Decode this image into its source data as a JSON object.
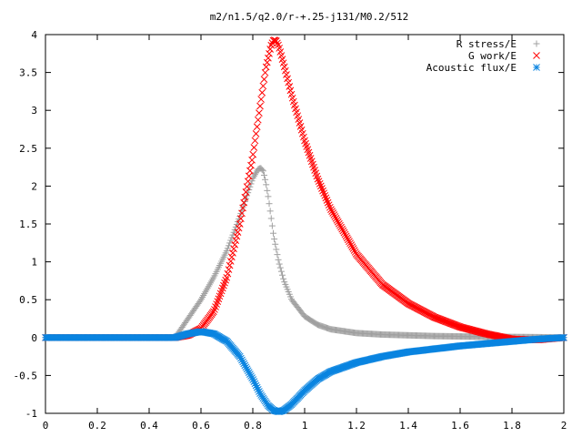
{
  "chart_data": {
    "type": "scatter",
    "title": "m2/n1.5/q2.0/r-+.25-j131/M0.2/512",
    "xlabel": "",
    "ylabel": "",
    "xlim": [
      0,
      2
    ],
    "ylim": [
      -1,
      4
    ],
    "xticks": [
      "0",
      "0.2",
      "0.4",
      "0.6",
      "0.8",
      "1",
      "1.2",
      "1.4",
      "1.6",
      "1.8",
      "2"
    ],
    "yticks": [
      "-1",
      "-0.5",
      "0",
      "0.5",
      "1",
      "1.5",
      "2",
      "2.5",
      "3",
      "3.5",
      "4"
    ],
    "grid": false,
    "legend_position": "top-right",
    "series": [
      {
        "name": "R stress/E",
        "color": "#a0a0a0",
        "marker": "plus",
        "x": [
          0.0,
          0.1,
          0.2,
          0.3,
          0.4,
          0.5,
          0.52,
          0.55,
          0.6,
          0.65,
          0.7,
          0.75,
          0.78,
          0.8,
          0.82,
          0.83,
          0.84,
          0.85,
          0.86,
          0.87,
          0.88,
          0.9,
          0.92,
          0.95,
          1.0,
          1.05,
          1.1,
          1.2,
          1.3,
          1.4,
          1.5,
          1.6,
          1.7,
          1.8,
          1.9,
          2.0
        ],
        "y": [
          0.0,
          0.0,
          0.0,
          0.0,
          0.0,
          0.0,
          0.1,
          0.25,
          0.5,
          0.8,
          1.15,
          1.6,
          1.9,
          2.1,
          2.22,
          2.24,
          2.2,
          2.05,
          1.85,
          1.6,
          1.35,
          1.0,
          0.75,
          0.5,
          0.28,
          0.17,
          0.11,
          0.06,
          0.04,
          0.03,
          0.02,
          0.015,
          0.01,
          0.008,
          0.005,
          0.0
        ]
      },
      {
        "name": "G work/E",
        "color": "#ff0000",
        "marker": "cross",
        "x": [
          0.0,
          0.1,
          0.2,
          0.3,
          0.4,
          0.5,
          0.55,
          0.6,
          0.65,
          0.7,
          0.75,
          0.8,
          0.83,
          0.85,
          0.87,
          0.88,
          0.89,
          0.9,
          0.92,
          0.95,
          1.0,
          1.05,
          1.1,
          1.2,
          1.3,
          1.4,
          1.5,
          1.6,
          1.7,
          1.8,
          1.9,
          2.0
        ],
        "y": [
          0.0,
          0.0,
          0.0,
          0.0,
          0.0,
          0.0,
          0.03,
          0.12,
          0.35,
          0.8,
          1.5,
          2.4,
          3.1,
          3.55,
          3.85,
          3.93,
          3.92,
          3.85,
          3.6,
          3.2,
          2.6,
          2.1,
          1.7,
          1.1,
          0.7,
          0.45,
          0.27,
          0.14,
          0.05,
          -0.02,
          -0.03,
          0.0
        ]
      },
      {
        "name": "Acoustic flux/E",
        "color": "#0a84e0",
        "marker": "star",
        "x": [
          0.0,
          0.1,
          0.2,
          0.3,
          0.4,
          0.5,
          0.55,
          0.6,
          0.65,
          0.7,
          0.75,
          0.8,
          0.83,
          0.86,
          0.88,
          0.9,
          0.92,
          0.95,
          1.0,
          1.05,
          1.1,
          1.2,
          1.3,
          1.4,
          1.5,
          1.6,
          1.7,
          1.8,
          1.9,
          2.0
        ],
        "y": [
          0.0,
          0.0,
          0.0,
          0.0,
          0.0,
          0.0,
          0.05,
          0.08,
          0.05,
          -0.05,
          -0.25,
          -0.55,
          -0.75,
          -0.9,
          -0.96,
          -0.98,
          -0.96,
          -0.88,
          -0.7,
          -0.55,
          -0.45,
          -0.33,
          -0.25,
          -0.19,
          -0.15,
          -0.11,
          -0.08,
          -0.05,
          -0.02,
          0.0
        ]
      }
    ]
  }
}
